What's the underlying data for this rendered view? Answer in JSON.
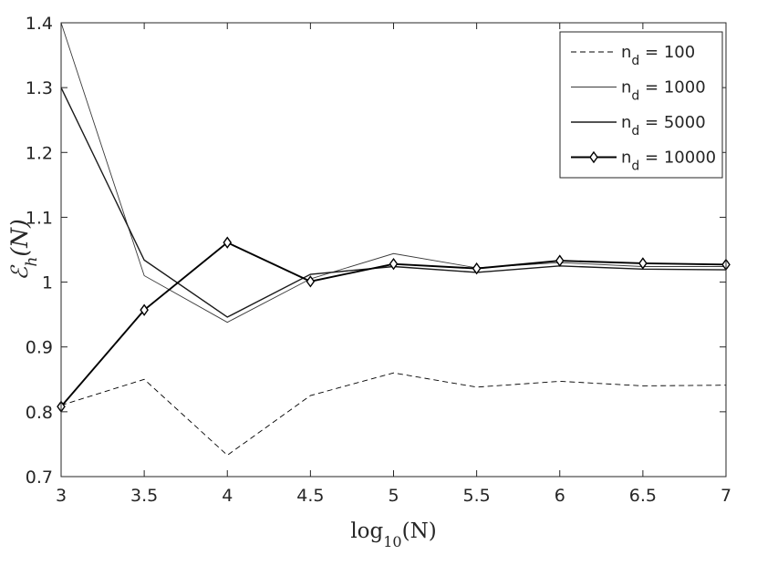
{
  "chart_data": {
    "type": "line",
    "x": [
      3,
      3.5,
      4,
      4.5,
      5,
      5.5,
      6,
      6.5,
      7
    ],
    "xlim": [
      3,
      7
    ],
    "ylim": [
      0.7,
      1.4
    ],
    "xticks": [
      3,
      3.5,
      4,
      4.5,
      5,
      5.5,
      6,
      6.5,
      7
    ],
    "yticks": [
      0.7,
      0.8,
      0.9,
      1,
      1.1,
      1.2,
      1.3,
      1.4
    ],
    "xtick_labels": [
      "3",
      "3.5",
      "4",
      "4.5",
      "5",
      "5.5",
      "6",
      "6.5",
      "7"
    ],
    "ytick_labels": [
      "0.7",
      "0.8",
      "0.9",
      "1",
      "1.1",
      "1.2",
      "1.3",
      "1.4"
    ],
    "xlabel": {
      "base": "log",
      "sub": "10",
      "arg": "(N)"
    },
    "ylabel": {
      "base": "ℰ",
      "sub": "h",
      "arg": "(N)"
    },
    "legend_position": "top-right",
    "grid": false,
    "series": [
      {
        "label_n": "n",
        "label_sub": "d",
        "label_rest": " = 100",
        "style": "dashed",
        "color": "#000000",
        "marker": "none",
        "values": [
          0.81,
          0.85,
          0.733,
          0.825,
          0.86,
          0.838,
          0.847,
          0.84,
          0.841
        ]
      },
      {
        "label_n": "n",
        "label_sub": "d",
        "label_rest": " = 1000",
        "style": "thin",
        "color": "#3a3a3a",
        "marker": "none",
        "values": [
          1.4,
          1.01,
          0.938,
          1.005,
          1.044,
          1.022,
          1.03,
          1.024,
          1.024
        ]
      },
      {
        "label_n": "n",
        "label_sub": "d",
        "label_rest": " = 5000",
        "style": "solid",
        "color": "#1a1a1a",
        "marker": "none",
        "values": [
          1.3,
          1.034,
          0.946,
          1.012,
          1.024,
          1.015,
          1.025,
          1.02,
          1.019
        ]
      },
      {
        "label_n": "n",
        "label_sub": "d",
        "label_rest": " = 10000",
        "style": "bold",
        "color": "#000000",
        "marker": "diamond",
        "values": [
          0.808,
          0.957,
          1.061,
          1.001,
          1.028,
          1.021,
          1.033,
          1.029,
          1.027
        ]
      }
    ]
  }
}
